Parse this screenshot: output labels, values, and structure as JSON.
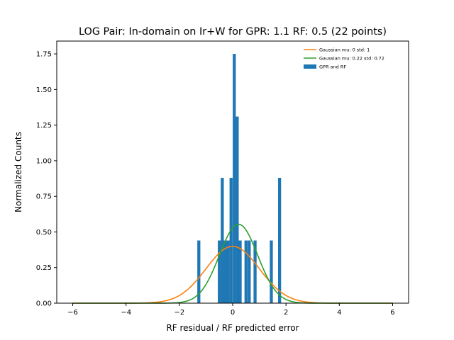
{
  "chart_data": {
    "type": "bar",
    "title": "LOG Pair: In-domain on Ir+W for GPR: 1.1 RF: 0.5 (22 points)",
    "xlabel": "RF residual / RF predicted error",
    "ylabel": "Normalized Counts",
    "xlim": [
      -6.6,
      6.6
    ],
    "ylim": [
      0,
      1.84
    ],
    "xticks": [
      -6,
      -4,
      -2,
      0,
      2,
      4,
      6
    ],
    "xtick_labels": [
      "−6",
      "−4",
      "−2",
      "0",
      "2",
      "4",
      "6"
    ],
    "yticks": [
      0,
      0.25,
      0.5,
      0.75,
      1.0,
      1.25,
      1.5,
      1.75
    ],
    "ytick_labels": [
      "0.00",
      "0.25",
      "0.50",
      "0.75",
      "1.00",
      "1.25",
      "1.50",
      "1.75"
    ],
    "legend_position": "top-right",
    "colors": {
      "hist": "#1f77b4",
      "gauss_std": "#ff7f0e",
      "gauss_fit": "#2ca02c"
    },
    "histogram": {
      "name": "GPR and RF",
      "bin_width": 0.114,
      "bins": [
        {
          "x": -1.27,
          "value": 0.44
        },
        {
          "x": -0.5,
          "value": 0.44
        },
        {
          "x": -0.39,
          "value": 0.88
        },
        {
          "x": -0.28,
          "value": 0.44
        },
        {
          "x": -0.17,
          "value": 0.44
        },
        {
          "x": -0.06,
          "value": 0.88
        },
        {
          "x": 0.06,
          "value": 1.75
        },
        {
          "x": 0.17,
          "value": 1.31
        },
        {
          "x": 0.28,
          "value": 0.44
        },
        {
          "x": 0.5,
          "value": 0.44
        },
        {
          "x": 0.62,
          "value": 0.44
        },
        {
          "x": 0.84,
          "value": 0.44
        },
        {
          "x": 1.45,
          "value": 0.44
        },
        {
          "x": 1.76,
          "value": 0.88
        }
      ]
    },
    "series": [
      {
        "name": "Gaussian mu: 0 std: 1",
        "type": "line",
        "mu": 0,
        "std": 1,
        "x_range": [
          -6,
          6
        ]
      },
      {
        "name": "Gaussian mu: 0.22 std: 0.72",
        "type": "line",
        "mu": 0.22,
        "std": 0.72,
        "x_range": [
          -6,
          6
        ]
      }
    ]
  }
}
